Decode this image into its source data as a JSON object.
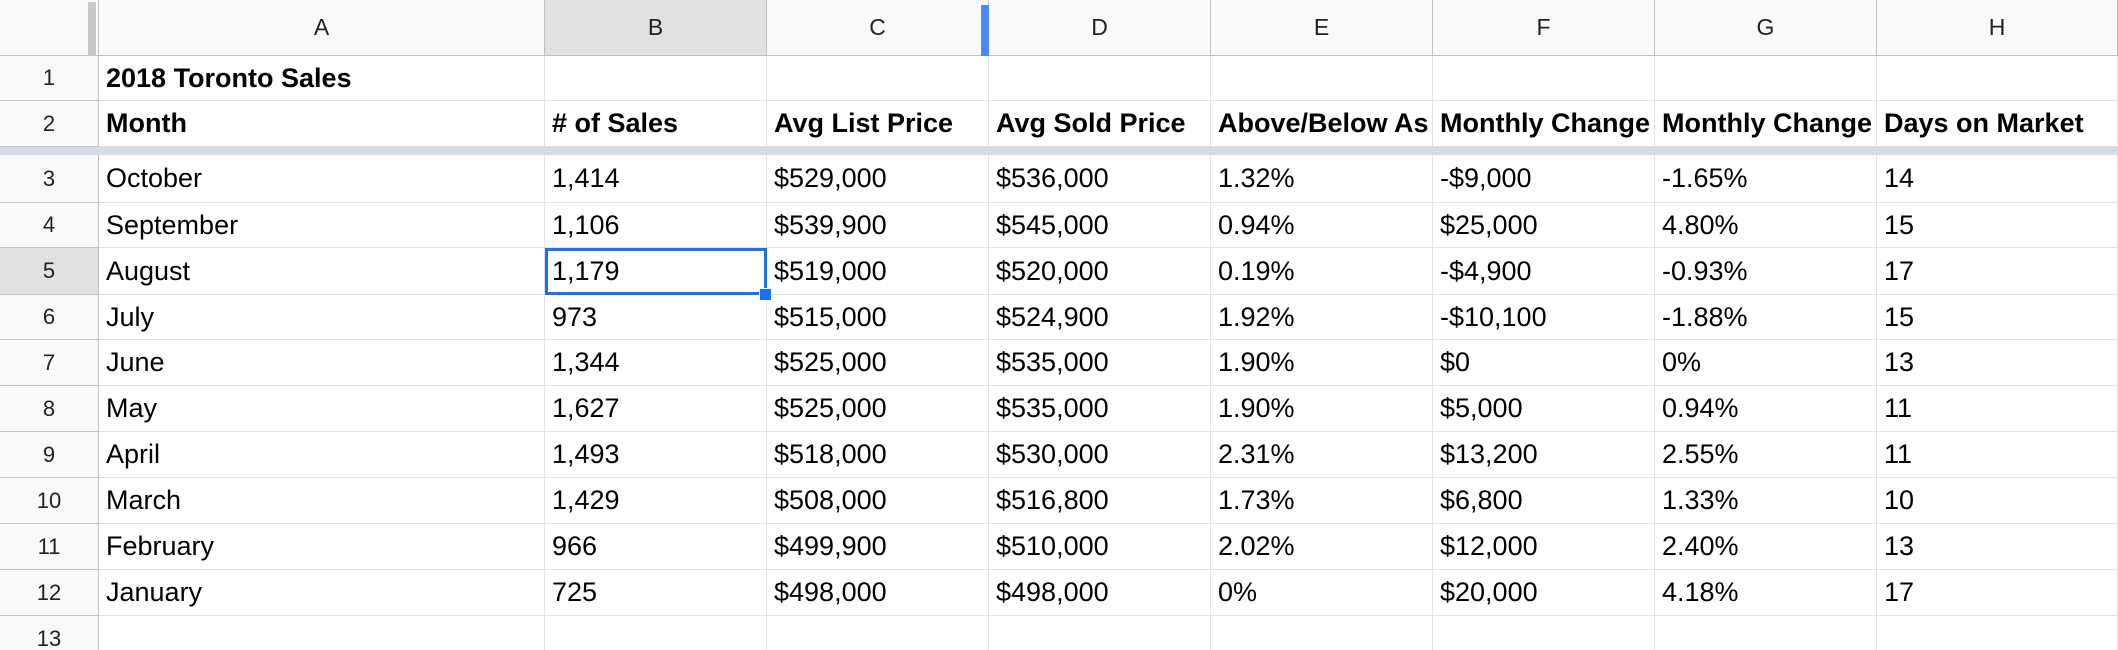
{
  "columns": [
    "A",
    "B",
    "C",
    "D",
    "E",
    "F",
    "G",
    "H"
  ],
  "selected_column": "B",
  "selected_row": 5,
  "selected_cell": "B5",
  "title_row": {
    "number": "1",
    "title": "2018 Toronto Sales"
  },
  "header_row": {
    "number": "2",
    "headers": [
      "Month",
      "# of Sales",
      "Avg List Price",
      "Avg Sold Price",
      "Above/Below As",
      "Monthly Change",
      "Monthly Change",
      "Days on Market"
    ]
  },
  "data_rows": [
    {
      "number": "3",
      "cells": [
        "October",
        "1,414",
        "$529,000",
        "$536,000",
        "1.32%",
        "-$9,000",
        "-1.65%",
        "14"
      ]
    },
    {
      "number": "4",
      "cells": [
        "September",
        "1,106",
        "$539,900",
        "$545,000",
        "0.94%",
        "$25,000",
        "4.80%",
        "15"
      ]
    },
    {
      "number": "5",
      "cells": [
        "August",
        "1,179",
        "$519,000",
        "$520,000",
        "0.19%",
        "-$4,900",
        "-0.93%",
        "17"
      ]
    },
    {
      "number": "6",
      "cells": [
        "July",
        "973",
        "$515,000",
        "$524,900",
        "1.92%",
        "-$10,100",
        "-1.88%",
        "15"
      ]
    },
    {
      "number": "7",
      "cells": [
        "June",
        "1,344",
        "$525,000",
        "$535,000",
        "1.90%",
        "$0",
        "0%",
        "13"
      ]
    },
    {
      "number": "8",
      "cells": [
        "May",
        "1,627",
        "$525,000",
        "$535,000",
        "1.90%",
        "$5,000",
        "0.94%",
        "11"
      ]
    },
    {
      "number": "9",
      "cells": [
        "April",
        "1,493",
        "$518,000",
        "$530,000",
        "2.31%",
        "$13,200",
        "2.55%",
        "11"
      ]
    },
    {
      "number": "10",
      "cells": [
        "March",
        "1,429",
        "$508,000",
        "$516,800",
        "1.73%",
        "$6,800",
        "1.33%",
        "10"
      ]
    },
    {
      "number": "11",
      "cells": [
        "February",
        "966",
        "$499,900",
        "$510,000",
        "2.02%",
        "$12,000",
        "2.40%",
        "13"
      ]
    },
    {
      "number": "12",
      "cells": [
        "January",
        "725",
        "$498,000",
        "$498,000",
        "0%",
        "$20,000",
        "4.18%",
        "17"
      ]
    }
  ],
  "empty_row": {
    "number": "13"
  },
  "colors": {
    "selection": "#1a73e8",
    "header_background": "#f8f9fa",
    "selected_header_background": "#e1e1e1",
    "frozen_divider": "#d6dbe4",
    "column_resize_handle": "#4a8af4"
  }
}
